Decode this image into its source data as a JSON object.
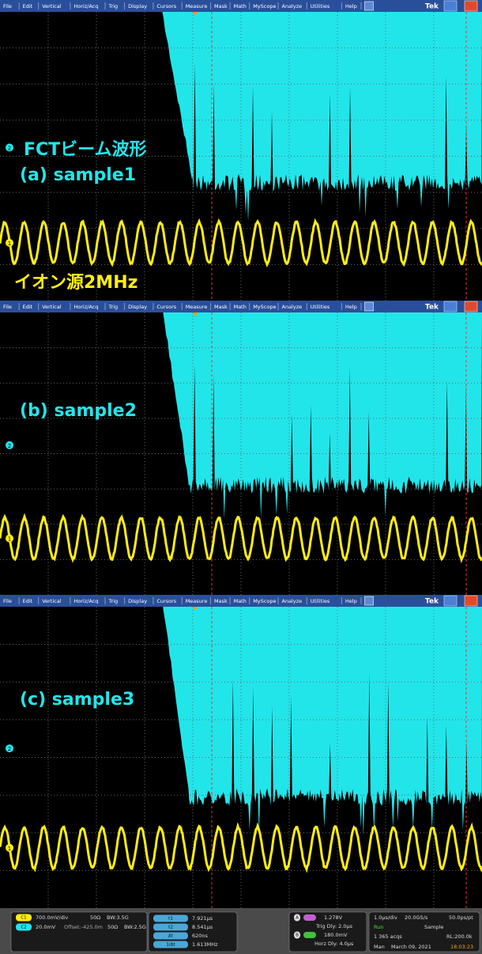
{
  "menu": [
    "File",
    "Edit",
    "Vertical",
    "Horiz/Acq",
    "Trig",
    "Display",
    "Cursors",
    "Measure",
    "Mask",
    "Math",
    "MyScope",
    "Analyze",
    "Utilities",
    "Help"
  ],
  "brand": "Tek",
  "markers": {
    "ch1": "1",
    "ch2": "2"
  },
  "panels": [
    {
      "title": "FCTビーム波形",
      "label": "(a) sample1",
      "source": "イオン源2MHz"
    },
    {
      "label": "(b) sample2"
    },
    {
      "label": "(c) sample3"
    }
  ],
  "status": {
    "ch1": {
      "badge": "C1",
      "scale": "700.0mV/div",
      "term": "50Ω",
      "bw": "BW:3.5G"
    },
    "ch2": {
      "badge": "C2",
      "scale": "20.0mV",
      "offset": "Offset:-425.0m",
      "term": "50Ω",
      "bw": "BW:2.5G"
    },
    "cursors": [
      {
        "badge": "t1",
        "value": "7.921µs"
      },
      {
        "badge": "t2",
        "value": "8.541µs"
      },
      {
        "badge": "Δt",
        "value": "620ns"
      },
      {
        "badge": "1/Δt",
        "value": "1.613MHz"
      }
    ],
    "trigger": {
      "a": "A",
      "a_level": "1.278V",
      "trig_dly": "Trig Dly: 2.0µs",
      "b": "B",
      "b_level": "180.0mV",
      "horz_dly": "Horz Dly: 4.0µs"
    },
    "acq": {
      "timebase": "1.0µs/div",
      "rate": "20.0GS/s",
      "res": "50.0ps/pt",
      "state": "Run",
      "mode": "Sample",
      "acqs": "1 365 acqs",
      "rl": "RL:200.0k",
      "trig_mode": "Man",
      "date": "March 09, 2021",
      "time": "18:03:23"
    }
  }
}
